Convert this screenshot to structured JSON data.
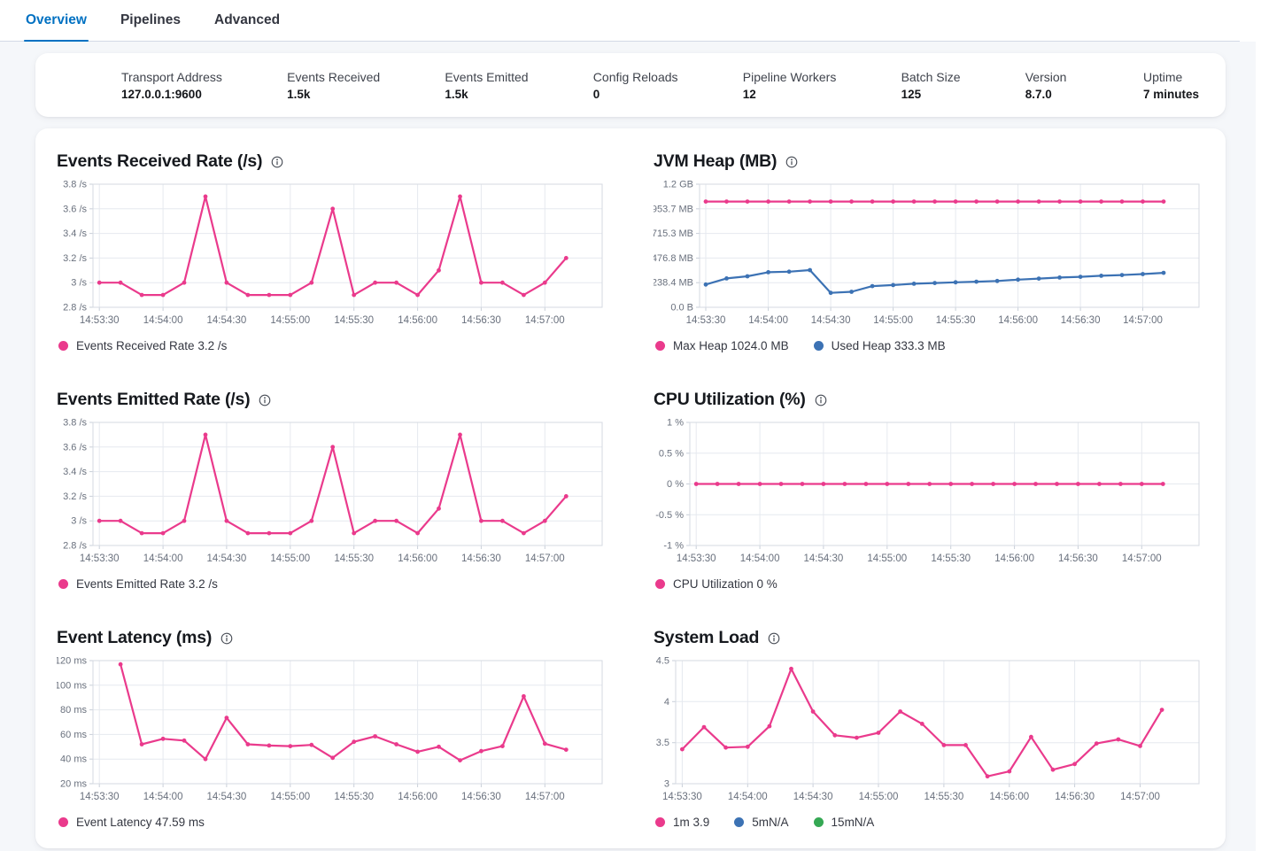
{
  "tabs": [
    {
      "label": "Overview",
      "active": true
    },
    {
      "label": "Pipelines",
      "active": false
    },
    {
      "label": "Advanced",
      "active": false
    }
  ],
  "summary": [
    {
      "label": "Transport Address",
      "value": "127.0.0.1:9600"
    },
    {
      "label": "Events Received",
      "value": "1.5k"
    },
    {
      "label": "Events Emitted",
      "value": "1.5k"
    },
    {
      "label": "Config Reloads",
      "value": "0"
    },
    {
      "label": "Pipeline Workers",
      "value": "12"
    },
    {
      "label": "Batch Size",
      "value": "125"
    },
    {
      "label": "Version",
      "value": "8.7.0"
    },
    {
      "label": "Uptime",
      "value": "7 minutes"
    }
  ],
  "colors": {
    "accent": "#0071C2",
    "pink": "#EA3A8C",
    "blue": "#3C72B4",
    "green": "#35A854",
    "page_bg": "#F5F7FA"
  },
  "time_points": [
    "14:53:30",
    "14:53:40",
    "14:53:50",
    "14:54:00",
    "14:54:10",
    "14:54:20",
    "14:54:30",
    "14:54:40",
    "14:54:50",
    "14:55:00",
    "14:55:10",
    "14:55:20",
    "14:55:30",
    "14:55:40",
    "14:55:50",
    "14:56:00",
    "14:56:10",
    "14:56:20",
    "14:56:30",
    "14:56:40",
    "14:56:50",
    "14:57:00",
    "14:57:10"
  ],
  "chart_data": [
    {
      "type": "line",
      "title": "Events Received Rate (/s)",
      "x_tick_labels": [
        "14:53:30",
        "14:54:00",
        "14:54:30",
        "14:55:00",
        "14:55:30",
        "14:56:00",
        "14:56:30",
        "14:57:00"
      ],
      "ylim": [
        2.8,
        3.8
      ],
      "yticks": [
        {
          "value": 2.8,
          "label": "2.8 /s"
        },
        {
          "value": 3.0,
          "label": "3 /s"
        },
        {
          "value": 3.2,
          "label": "3.2 /s"
        },
        {
          "value": 3.4,
          "label": "3.4 /s"
        },
        {
          "value": 3.6,
          "label": "3.6 /s"
        },
        {
          "value": 3.8,
          "label": "3.8 /s"
        }
      ],
      "series": [
        {
          "name": "Events Received Rate",
          "color": "#EA3A8C",
          "values": [
            3,
            3,
            2.9,
            2.9,
            3,
            3.7,
            3,
            2.9,
            2.9,
            2.9,
            3,
            3.6,
            2.9,
            3,
            3,
            2.9,
            3.1,
            3.7,
            3,
            3,
            2.9,
            3,
            3.2
          ]
        }
      ],
      "legend": [
        {
          "color": "#EA3A8C",
          "label": "Events Received Rate 3.2 /s"
        }
      ]
    },
    {
      "type": "line",
      "title": "JVM Heap (MB)",
      "x_tick_labels": [
        "14:53:30",
        "14:54:00",
        "14:54:30",
        "14:55:00",
        "14:55:30",
        "14:56:00",
        "14:56:30",
        "14:57:00"
      ],
      "ylim": [
        0,
        1192.1
      ],
      "yticks": [
        {
          "value": 0,
          "label": "0.0 B"
        },
        {
          "value": 238.4,
          "label": "238.4 MB"
        },
        {
          "value": 476.8,
          "label": "476.8 MB"
        },
        {
          "value": 715.3,
          "label": "715.3 MB"
        },
        {
          "value": 953.7,
          "label": "953.7 MB"
        },
        {
          "value": 1192.1,
          "label": "1.2 GB"
        }
      ],
      "series": [
        {
          "name": "Max Heap",
          "color": "#EA3A8C",
          "values": [
            1024,
            1024,
            1024,
            1024,
            1024,
            1024,
            1024,
            1024,
            1024,
            1024,
            1024,
            1024,
            1024,
            1024,
            1024,
            1024,
            1024,
            1024,
            1024,
            1024,
            1024,
            1024,
            1024
          ]
        },
        {
          "name": "Used Heap",
          "color": "#3C72B4",
          "values": [
            220,
            280,
            300,
            340,
            345,
            360,
            140,
            150,
            205,
            215,
            228,
            235,
            242,
            248,
            255,
            268,
            278,
            288,
            295,
            305,
            312,
            322,
            333.3
          ]
        }
      ],
      "legend": [
        {
          "color": "#EA3A8C",
          "label": "Max Heap 1024.0 MB"
        },
        {
          "color": "#3C72B4",
          "label": "Used Heap 333.3 MB"
        }
      ]
    },
    {
      "type": "line",
      "title": "Events Emitted Rate (/s)",
      "x_tick_labels": [
        "14:53:30",
        "14:54:00",
        "14:54:30",
        "14:55:00",
        "14:55:30",
        "14:56:00",
        "14:56:30",
        "14:57:00"
      ],
      "ylim": [
        2.8,
        3.8
      ],
      "yticks": [
        {
          "value": 2.8,
          "label": "2.8 /s"
        },
        {
          "value": 3.0,
          "label": "3 /s"
        },
        {
          "value": 3.2,
          "label": "3.2 /s"
        },
        {
          "value": 3.4,
          "label": "3.4 /s"
        },
        {
          "value": 3.6,
          "label": "3.6 /s"
        },
        {
          "value": 3.8,
          "label": "3.8 /s"
        }
      ],
      "series": [
        {
          "name": "Events Emitted Rate",
          "color": "#EA3A8C",
          "values": [
            3,
            3,
            2.9,
            2.9,
            3,
            3.7,
            3,
            2.9,
            2.9,
            2.9,
            3,
            3.6,
            2.9,
            3,
            3,
            2.9,
            3.1,
            3.7,
            3,
            3,
            2.9,
            3,
            3.2
          ]
        }
      ],
      "legend": [
        {
          "color": "#EA3A8C",
          "label": "Events Emitted Rate 3.2 /s"
        }
      ]
    },
    {
      "type": "line",
      "title": "CPU Utilization (%)",
      "x_tick_labels": [
        "14:53:30",
        "14:54:00",
        "14:54:30",
        "14:55:00",
        "14:55:30",
        "14:56:00",
        "14:56:30",
        "14:57:00"
      ],
      "ylim": [
        -1,
        1
      ],
      "yticks": [
        {
          "value": -1,
          "label": "-1 %"
        },
        {
          "value": -0.5,
          "label": "-0.5 %"
        },
        {
          "value": 0,
          "label": "0 %"
        },
        {
          "value": 0.5,
          "label": "0.5 %"
        },
        {
          "value": 1,
          "label": "1 %"
        }
      ],
      "series": [
        {
          "name": "CPU Utilization",
          "color": "#EA3A8C",
          "values": [
            0,
            0,
            0,
            0,
            0,
            0,
            0,
            0,
            0,
            0,
            0,
            0,
            0,
            0,
            0,
            0,
            0,
            0,
            0,
            0,
            0,
            0,
            0
          ]
        }
      ],
      "legend": [
        {
          "color": "#EA3A8C",
          "label": "CPU Utilization 0 %"
        }
      ]
    },
    {
      "type": "line",
      "title": "Event Latency (ms)",
      "x_tick_labels": [
        "14:53:30",
        "14:54:00",
        "14:54:30",
        "14:55:00",
        "14:55:30",
        "14:56:00",
        "14:56:30",
        "14:57:00"
      ],
      "ylim": [
        20,
        120
      ],
      "yticks": [
        {
          "value": 20,
          "label": "20 ms"
        },
        {
          "value": 40,
          "label": "40 ms"
        },
        {
          "value": 60,
          "label": "60 ms"
        },
        {
          "value": 80,
          "label": "80 ms"
        },
        {
          "value": 100,
          "label": "100 ms"
        },
        {
          "value": 120,
          "label": "120 ms"
        }
      ],
      "series": [
        {
          "name": "Event Latency",
          "color": "#EA3A8C",
          "values": [
            null,
            117,
            52,
            56.5,
            55,
            40,
            73.5,
            52,
            51,
            50.5,
            51.5,
            41,
            54,
            58.5,
            52,
            46,
            50,
            39,
            46.5,
            50.5,
            91,
            52.5,
            47.59
          ]
        }
      ],
      "legend": [
        {
          "color": "#EA3A8C",
          "label": "Event Latency 47.59 ms"
        }
      ]
    },
    {
      "type": "line",
      "title": "System Load",
      "x_tick_labels": [
        "14:53:30",
        "14:54:00",
        "14:54:30",
        "14:55:00",
        "14:55:30",
        "14:56:00",
        "14:56:30",
        "14:57:00"
      ],
      "ylim": [
        3,
        4.5
      ],
      "yticks": [
        {
          "value": 3,
          "label": "3"
        },
        {
          "value": 3.5,
          "label": "3.5"
        },
        {
          "value": 4,
          "label": "4"
        },
        {
          "value": 4.5,
          "label": "4.5"
        }
      ],
      "series": [
        {
          "name": "1m",
          "color": "#EA3A8C",
          "values": [
            3.42,
            3.69,
            3.44,
            3.45,
            3.7,
            4.4,
            3.88,
            3.59,
            3.56,
            3.62,
            3.88,
            3.73,
            3.47,
            3.47,
            3.09,
            3.15,
            3.57,
            3.17,
            3.24,
            3.49,
            3.54,
            3.46,
            3.9
          ]
        }
      ],
      "legend": [
        {
          "color": "#EA3A8C",
          "label": "1m 3.9"
        },
        {
          "color": "#3C72B4",
          "label": "5mN/A"
        },
        {
          "color": "#35A854",
          "label": "15mN/A"
        }
      ]
    }
  ]
}
